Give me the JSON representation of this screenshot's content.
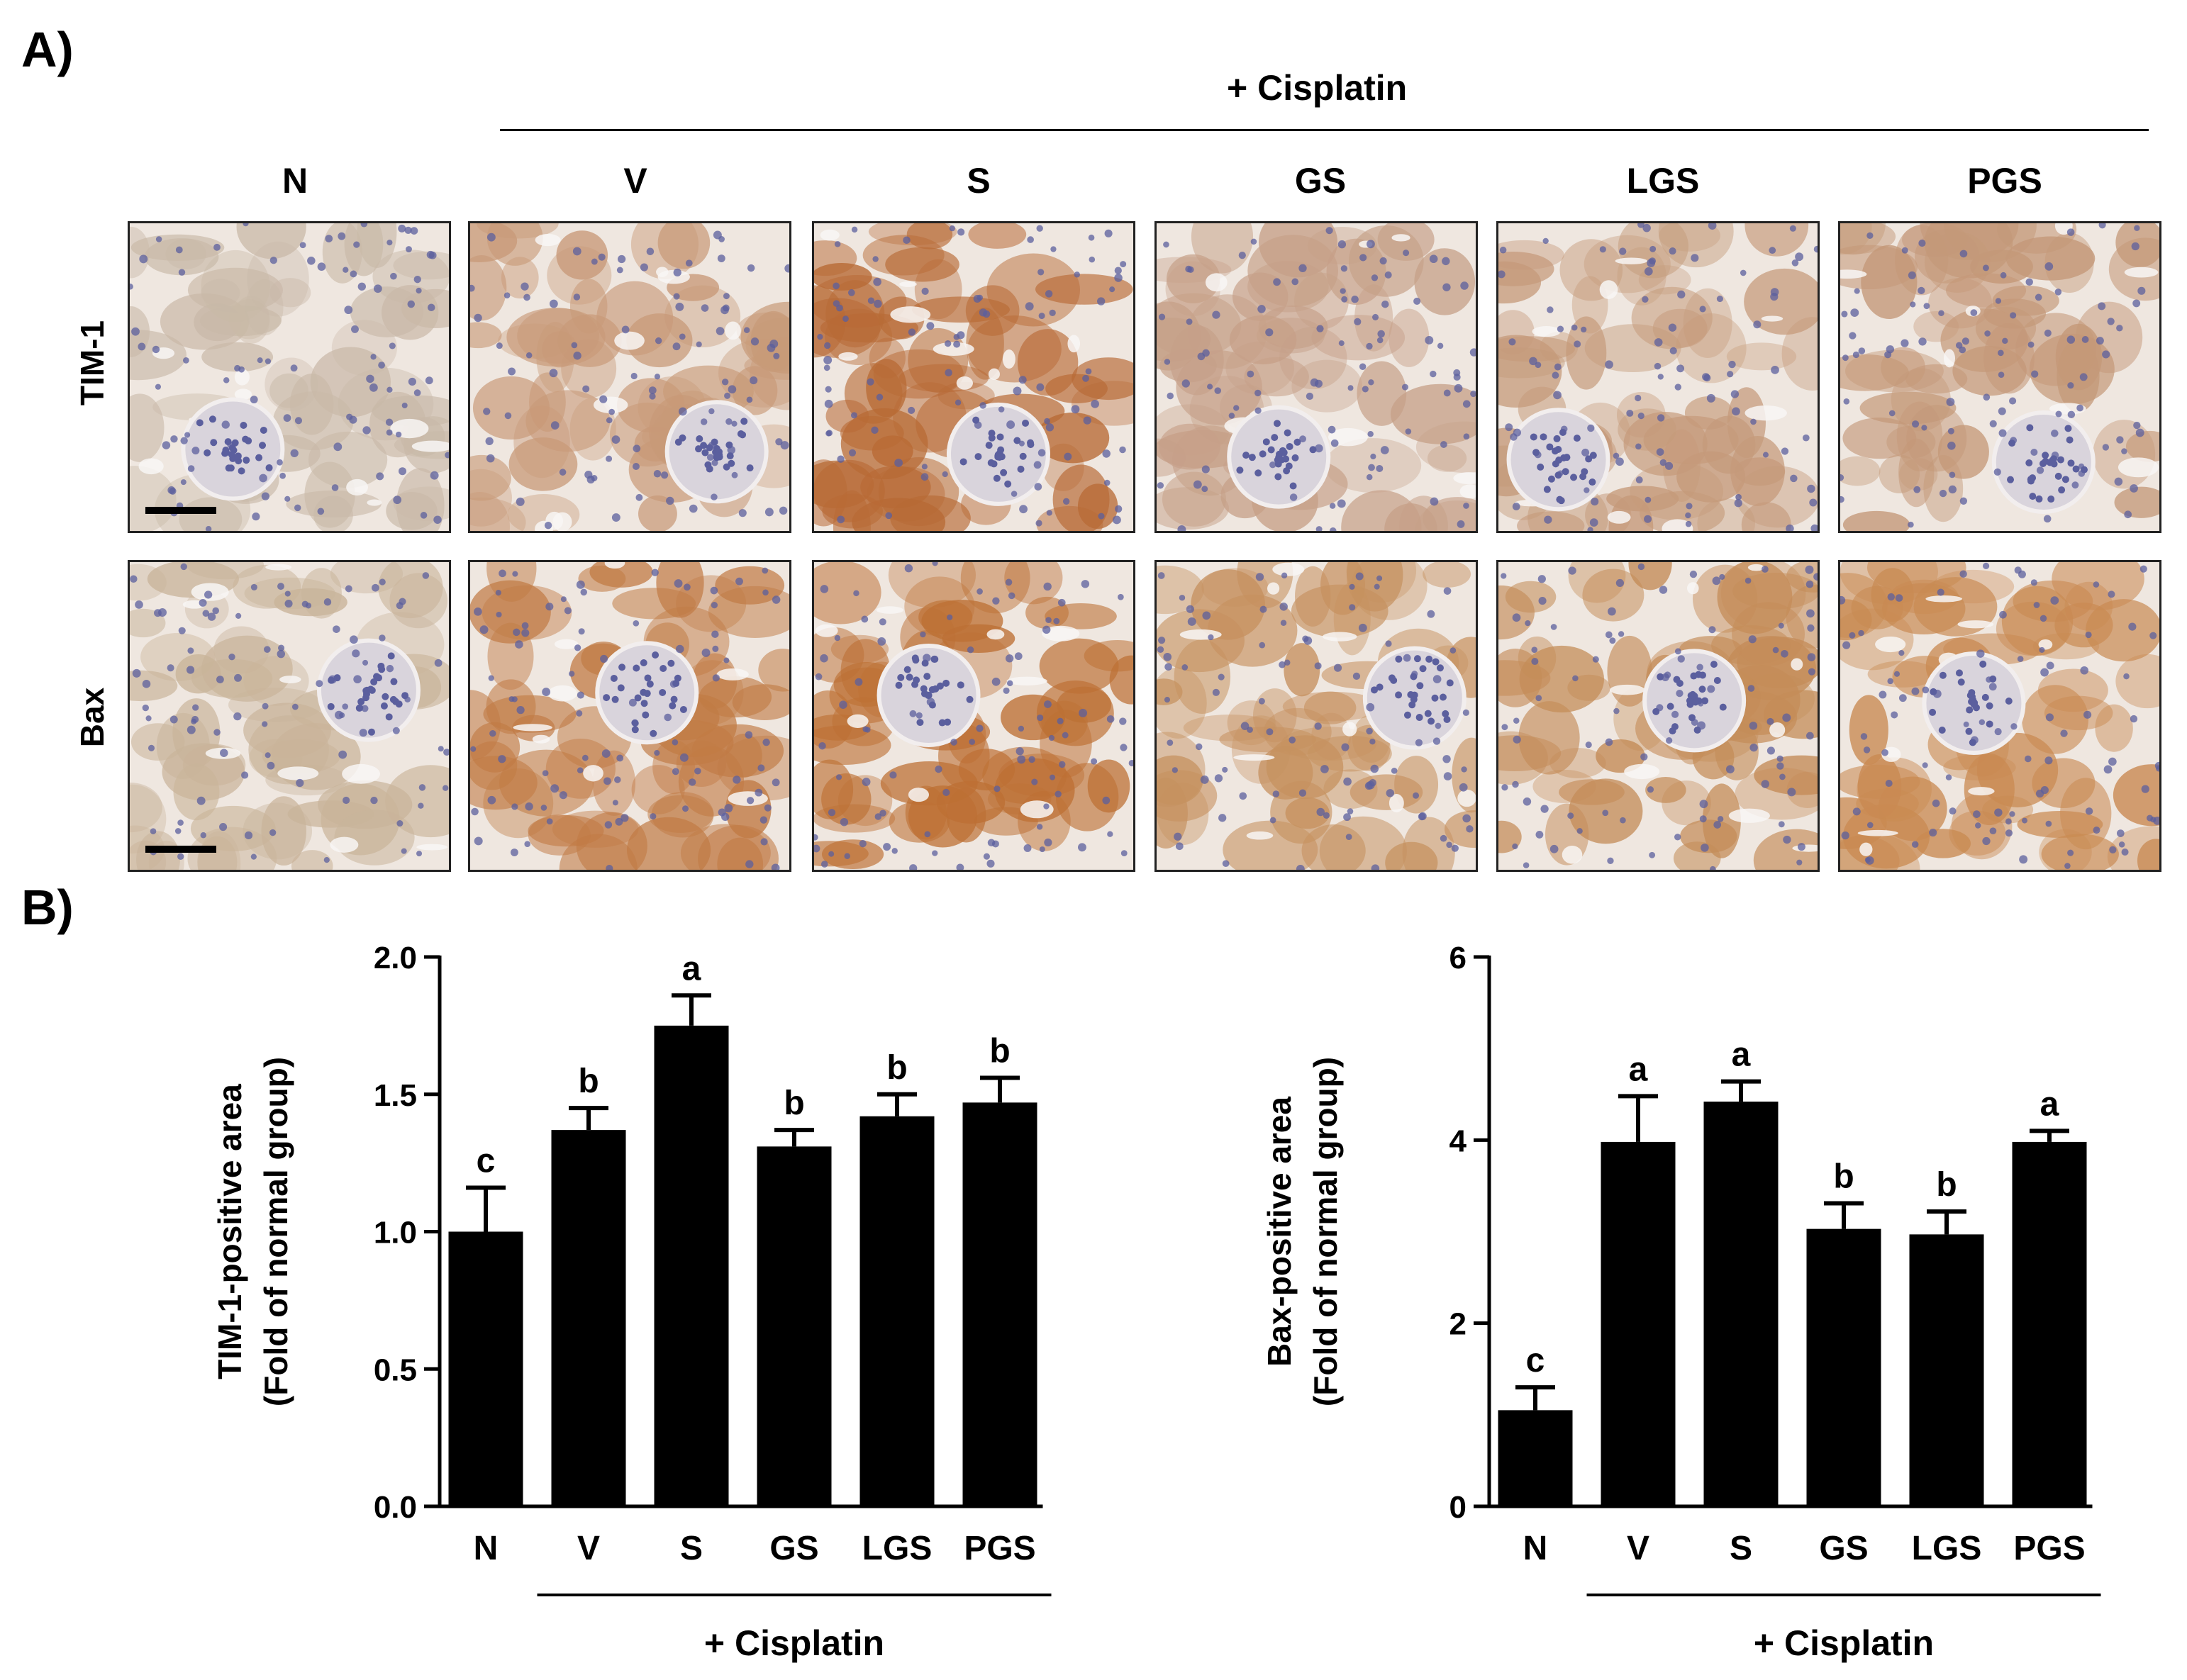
{
  "panel_a": {
    "letter": "A)",
    "treatment_label": "+ Cisplatin",
    "columns": [
      "N",
      "V",
      "S",
      "GS",
      "LGS",
      "PGS"
    ],
    "rows": [
      {
        "label": "TIM-1",
        "stain": [
          "#c9b9a8",
          "#c89a78",
          "#b86a35",
          "#c6a088",
          "#c59a7a",
          "#c49878"
        ]
      },
      {
        "label": "Bax",
        "stain": [
          "#c9b49a",
          "#c17b45",
          "#bd7034",
          "#c6915f",
          "#c48c58",
          "#c98a52"
        ]
      }
    ],
    "nuclei_color": "#5b5f9e"
  },
  "panel_b": {
    "letter": "B)",
    "treatment_label": "+ Cisplatin",
    "bar_color": "#000000"
  },
  "chart_data": [
    {
      "type": "bar",
      "categories": [
        "N",
        "V",
        "S",
        "GS",
        "LGS",
        "PGS"
      ],
      "values": [
        1.0,
        1.37,
        1.75,
        1.31,
        1.42,
        1.47
      ],
      "errors": [
        0.16,
        0.08,
        0.11,
        0.06,
        0.08,
        0.09
      ],
      "annotations": [
        "c",
        "b",
        "a",
        "b",
        "b",
        "b"
      ],
      "ylabel": "TIM-1-positive area",
      "ylabel2": "(Fold of normal group)",
      "ylim": [
        0,
        2.0
      ],
      "yticks": [
        "0.0",
        "0.5",
        "1.0",
        "1.5",
        "2.0"
      ],
      "group_label": "+ Cisplatin"
    },
    {
      "type": "bar",
      "categories": [
        "N",
        "V",
        "S",
        "GS",
        "LGS",
        "PGS"
      ],
      "values": [
        1.05,
        3.98,
        4.42,
        3.03,
        2.97,
        3.98
      ],
      "errors": [
        0.25,
        0.5,
        0.22,
        0.28,
        0.25,
        0.12
      ],
      "annotations": [
        "c",
        "a",
        "a",
        "b",
        "b",
        "a"
      ],
      "ylabel": "Bax-positive area",
      "ylabel2": "(Fold of normal group)",
      "ylim": [
        0,
        6
      ],
      "yticks": [
        "0",
        "2",
        "4",
        "6"
      ],
      "group_label": "+ Cisplatin"
    }
  ]
}
